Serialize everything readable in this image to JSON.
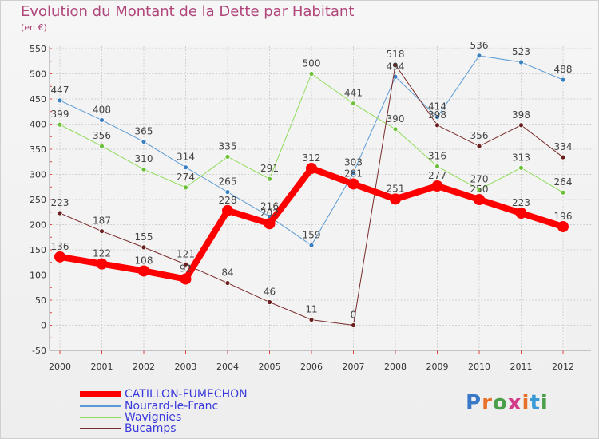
{
  "header": {
    "title": "Evolution du Montant de la Dette par Habitant",
    "subtitle": "(en €)"
  },
  "logo": {
    "text": "Proxiti",
    "colors": [
      "#3a78c8",
      "#e8702a",
      "#4aa04a",
      "#d23b8a",
      "#e8702a",
      "#3a9ad8",
      "#4aa04a"
    ]
  },
  "chart_data": {
    "type": "line",
    "title": "Evolution du Montant de la Dette par Habitant",
    "subtitle": "(en €)",
    "x": [
      "2000",
      "2001",
      "2002",
      "2003",
      "2004",
      "2005",
      "2006",
      "2007",
      "2008",
      "2009",
      "2010",
      "2011",
      "2012"
    ],
    "ylim": [
      -50,
      550
    ],
    "yticks": [
      -50,
      0,
      50,
      100,
      150,
      200,
      250,
      300,
      350,
      400,
      450,
      500,
      550
    ],
    "grid": true,
    "legend_position": "bottom-left",
    "series": [
      {
        "name": "Nourard-le-Franc",
        "color": "#5b9bd5",
        "marker": "#3a7fc0",
        "width": 1,
        "values": [
          447,
          408,
          365,
          314,
          265,
          216,
          159,
          303,
          494,
          414,
          536,
          523,
          488
        ],
        "labels": [
          "447",
          "408",
          "365",
          "314",
          "265",
          "216",
          "159",
          "303",
          "494",
          "414",
          "536",
          "523",
          "488"
        ]
      },
      {
        "name": "Wavignies",
        "color": "#8fdc5a",
        "marker": "#6cc03a",
        "width": 1,
        "values": [
          399,
          356,
          310,
          274,
          335,
          291,
          500,
          441,
          390,
          316,
          270,
          313,
          264
        ],
        "labels": [
          "399",
          "356",
          "310",
          "274",
          "335",
          "291",
          "500",
          "441",
          "390",
          "316",
          "270",
          "313",
          "264"
        ]
      },
      {
        "name": "Bucamps",
        "color": "#7a2a2a",
        "marker": "#6a1f1f",
        "width": 1,
        "values": [
          223,
          187,
          155,
          121,
          84,
          46,
          11,
          0,
          518,
          398,
          356,
          398,
          334
        ],
        "labels": [
          "223",
          "187",
          "155",
          "121",
          "84",
          "46",
          "11",
          "0",
          "518",
          "398",
          "356",
          "398",
          "334"
        ]
      },
      {
        "name": "CATILLON-FUMECHON",
        "color": "#ff0000",
        "marker": "#ff0000",
        "width": 8,
        "values": [
          136,
          122,
          108,
          92,
          228,
          202,
          312,
          281,
          251,
          277,
          250,
          223,
          196
        ],
        "labels": [
          "136",
          "122",
          "108",
          "92",
          "228",
          "202",
          "312",
          "281",
          "251",
          "277",
          "250",
          "223",
          "196"
        ]
      }
    ],
    "legend": [
      {
        "name": "CATILLON-FUMECHON",
        "color": "#ff0000",
        "text_color": "#3a3adc",
        "width": 8
      },
      {
        "name": "Nourard-le-Franc",
        "color": "#5b9bd5",
        "text_color": "#3a3adc",
        "width": 2
      },
      {
        "name": "Wavignies",
        "color": "#8fdc5a",
        "text_color": "#3a3adc",
        "width": 2
      },
      {
        "name": "Bucamps",
        "color": "#7a2a2a",
        "text_color": "#3a3adc",
        "width": 2
      }
    ]
  }
}
